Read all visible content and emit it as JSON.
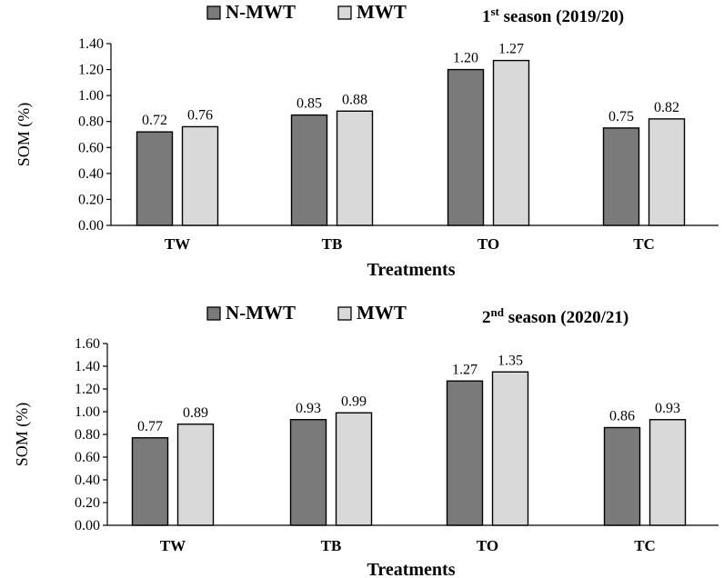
{
  "chart_data": [
    {
      "type": "bar",
      "title": "1st season (2019/20)",
      "title_main": "1",
      "title_sup": "st",
      "title_rest": " season (2019/20)",
      "xlabel": "Treatments",
      "ylabel": "SOM (%)",
      "categories": [
        "TW",
        "TB",
        "TO",
        "TC"
      ],
      "series": [
        {
          "name": "N-MWT",
          "color": "#7a7a7a",
          "values": [
            0.72,
            0.85,
            1.2,
            0.75
          ],
          "labels": [
            "0.72",
            "0.85",
            "1.20",
            "0.75"
          ]
        },
        {
          "name": "MWT",
          "color": "#d9d9d9",
          "values": [
            0.76,
            0.88,
            1.27,
            0.82
          ],
          "labels": [
            "0.76",
            "0.88",
            "1.27",
            "0.82"
          ]
        }
      ],
      "ylim": [
        0,
        1.4
      ],
      "yticks": [
        "0.00",
        "0.20",
        "0.40",
        "0.60",
        "0.80",
        "1.00",
        "1.20",
        "1.40"
      ],
      "grid": false,
      "legend": "top"
    },
    {
      "type": "bar",
      "title": "2nd season (2020/21)",
      "title_main": "2",
      "title_sup": "nd",
      "title_rest": " season (2020/21)",
      "xlabel": "Treatments",
      "ylabel": "SOM (%)",
      "categories": [
        "TW",
        "TB",
        "TO",
        "TC"
      ],
      "series": [
        {
          "name": "N-MWT",
          "color": "#7a7a7a",
          "values": [
            0.77,
            0.93,
            1.27,
            0.86
          ],
          "labels": [
            "0.77",
            "0.93",
            "1.27",
            "0.86"
          ]
        },
        {
          "name": "MWT",
          "color": "#d9d9d9",
          "values": [
            0.89,
            0.99,
            1.35,
            0.93
          ],
          "labels": [
            "0.89",
            "0.99",
            "1.35",
            "0.93"
          ]
        }
      ],
      "ylim": [
        0,
        1.6
      ],
      "yticks": [
        "0.00",
        "0.20",
        "0.40",
        "0.60",
        "0.80",
        "1.00",
        "1.20",
        "1.40",
        "1.60"
      ],
      "grid": false,
      "legend": "top"
    }
  ]
}
